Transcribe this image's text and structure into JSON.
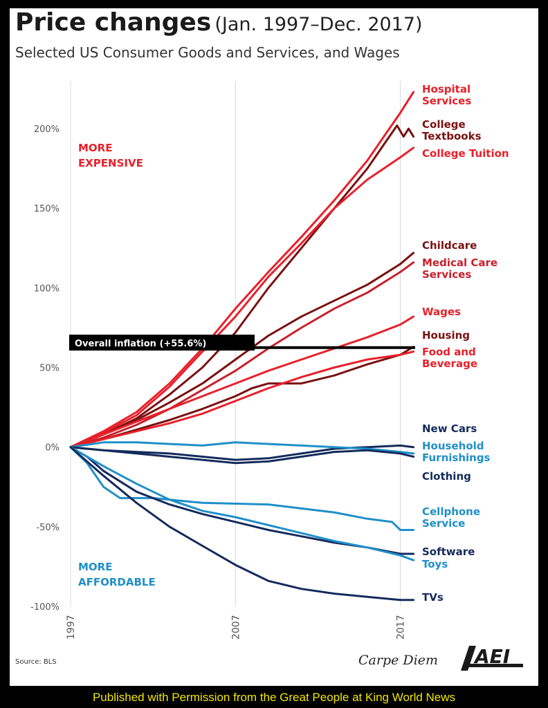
{
  "header": {
    "title": "Price changes",
    "title_range": "(Jan. 1997–Dec. 2017)",
    "subtitle": "Selected US Consumer Goods and Services, and Wages"
  },
  "footer": {
    "source": "Source: BLS",
    "brand": "Carpe Diem",
    "logo_text": "AEI",
    "permission": "Published with Permission from the Great People at King World News"
  },
  "colors": {
    "red": "#e8202a",
    "dark_red": "#7a1010",
    "navy": "#142a5c",
    "light_blue": "#1f8fc8",
    "axis_text": "#555555",
    "footer_text": "#f2e600"
  },
  "chart_data": {
    "type": "line",
    "x_ticks": [
      "1997",
      "2007",
      "2017"
    ],
    "xlim": [
      1997,
      2017.9
    ],
    "ylim": [
      -100,
      230
    ],
    "y_ticks": [
      200,
      150,
      100,
      50,
      0,
      -50,
      -100
    ],
    "y_tick_labels": [
      "200%",
      "150%",
      "100%",
      "50%",
      "0%",
      "-50%",
      "-100%"
    ],
    "region_labels": [
      {
        "text_lines": [
          "MORE",
          "EXPENSIVE"
        ],
        "color": "#e8202a"
      },
      {
        "text_lines": [
          "MORE",
          "AFFORDABLE"
        ],
        "color": "#1f8fc8"
      }
    ],
    "reference_line": {
      "label": "Overall inflation (+55.6%)",
      "value": 55.6
    },
    "series": [
      {
        "name": "Hospital Services",
        "label_lines": [
          "Hospital",
          "Services"
        ],
        "color": "#e8202a",
        "x": [
          1997,
          1999,
          2001,
          2003,
          2005,
          2007,
          2009,
          2011,
          2013,
          2015,
          2016,
          2017,
          2017.8
        ],
        "y": [
          0,
          10,
          22,
          40,
          62,
          87,
          110,
          132,
          155,
          180,
          195,
          210,
          223
        ]
      },
      {
        "name": "College Textbooks",
        "label_lines": [
          "College",
          "Textbooks"
        ],
        "color": "#7a1010",
        "x": [
          1997,
          1999,
          2001,
          2003,
          2005,
          2007,
          2009,
          2011,
          2013,
          2015,
          2016,
          2016.8,
          2017.2,
          2017.5,
          2017.8
        ],
        "y": [
          0,
          8,
          18,
          33,
          50,
          72,
          100,
          125,
          150,
          175,
          190,
          202,
          195,
          200,
          195
        ]
      },
      {
        "name": "College Tuition",
        "label_lines": [
          "College Tuition"
        ],
        "color": "#e8202a",
        "x": [
          1997,
          1999,
          2001,
          2003,
          2005,
          2007,
          2009,
          2011,
          2013,
          2015,
          2017,
          2017.8
        ],
        "y": [
          0,
          9,
          20,
          38,
          60,
          82,
          107,
          128,
          150,
          168,
          182,
          188
        ]
      },
      {
        "name": "Childcare",
        "label_lines": [
          "Childcare"
        ],
        "color": "#7a1010",
        "x": [
          1997,
          1999,
          2001,
          2003,
          2005,
          2007,
          2009,
          2011,
          2013,
          2015,
          2017,
          2017.8
        ],
        "y": [
          0,
          8,
          17,
          28,
          40,
          55,
          70,
          82,
          92,
          102,
          115,
          122
        ]
      },
      {
        "name": "Medical Care Services",
        "label_lines": [
          "Medical Care",
          "Services"
        ],
        "color": "#c8202a",
        "x": [
          1997,
          1999,
          2001,
          2003,
          2005,
          2007,
          2009,
          2011,
          2013,
          2015,
          2017,
          2017.8
        ],
        "y": [
          0,
          6,
          14,
          24,
          36,
          48,
          62,
          75,
          87,
          97,
          110,
          116
        ]
      },
      {
        "name": "Wages",
        "label_lines": [
          "Wages"
        ],
        "color": "#e8202a",
        "x": [
          1997,
          1999,
          2001,
          2003,
          2005,
          2007,
          2009,
          2011,
          2013,
          2015,
          2017,
          2017.8
        ],
        "y": [
          0,
          8,
          16,
          24,
          32,
          40,
          48,
          55,
          62,
          69,
          77,
          82
        ]
      },
      {
        "name": "Housing",
        "label_lines": [
          "Housing"
        ],
        "color": "#7a1010",
        "x": [
          1997,
          1999,
          2001,
          2003,
          2005,
          2007,
          2008,
          2009,
          2011,
          2013,
          2015,
          2017,
          2017.8
        ],
        "y": [
          0,
          5,
          11,
          17,
          24,
          32,
          37,
          40,
          40,
          45,
          52,
          58,
          63
        ]
      },
      {
        "name": "Food and Beverage",
        "label_lines": [
          "Food and",
          "Beverage"
        ],
        "color": "#e8202a",
        "x": [
          1997,
          1999,
          2001,
          2003,
          2005,
          2007,
          2009,
          2011,
          2013,
          2015,
          2017,
          2017.8
        ],
        "y": [
          0,
          5,
          10,
          15,
          21,
          29,
          37,
          44,
          50,
          55,
          58,
          60
        ]
      },
      {
        "name": "New Cars",
        "label_lines": [
          "New Cars"
        ],
        "color": "#142a5c",
        "x": [
          1997,
          1999,
          2001,
          2003,
          2005,
          2007,
          2009,
          2011,
          2013,
          2015,
          2017,
          2017.8
        ],
        "y": [
          0,
          -2,
          -3,
          -4,
          -6,
          -8,
          -7,
          -4,
          -1,
          0,
          1,
          0
        ]
      },
      {
        "name": "Household Furnishings",
        "label_lines": [
          "Household",
          "Furnishings"
        ],
        "color": "#1f8fc8",
        "x": [
          1997,
          1999,
          2001,
          2003,
          2005,
          2007,
          2009,
          2011,
          2013,
          2015,
          2017,
          2017.8
        ],
        "y": [
          0,
          3,
          3,
          2,
          1,
          3,
          2,
          1,
          0,
          -1,
          -3,
          -4
        ]
      },
      {
        "name": "Clothing",
        "label_lines": [
          "Clothing"
        ],
        "color": "#142a5c",
        "x": [
          1997,
          1999,
          2001,
          2003,
          2005,
          2007,
          2009,
          2011,
          2013,
          2015,
          2017,
          2017.8
        ],
        "y": [
          0,
          -2,
          -4,
          -6,
          -8,
          -10,
          -9,
          -6,
          -3,
          -2,
          -4,
          -6
        ]
      },
      {
        "name": "Cellphone Service",
        "label_lines": [
          "Cellphone",
          "Service"
        ],
        "color": "#1f8fc8",
        "x": [
          1997,
          1998,
          1999,
          2000,
          2002,
          2005,
          2009,
          2013,
          2015,
          2016.5,
          2017,
          2017.8
        ],
        "y": [
          0,
          -10,
          -25,
          -32,
          -32,
          -35,
          -36,
          -41,
          -45,
          -47,
          -52,
          -52
        ]
      },
      {
        "name": "Software",
        "label_lines": [
          "Software"
        ],
        "color": "#142a5c",
        "x": [
          1997,
          1998,
          1999,
          2001,
          2003,
          2005,
          2007,
          2009,
          2011,
          2013,
          2015,
          2017,
          2017.8
        ],
        "y": [
          0,
          -6,
          -15,
          -28,
          -36,
          -42,
          -47,
          -52,
          -56,
          -60,
          -63,
          -67,
          -67
        ]
      },
      {
        "name": "Toys",
        "label_lines": [
          "Toys"
        ],
        "color": "#1f8fc8",
        "x": [
          1997,
          1999,
          2001,
          2003,
          2005,
          2007,
          2009,
          2011,
          2013,
          2015,
          2017,
          2017.8
        ],
        "y": [
          0,
          -12,
          -23,
          -33,
          -40,
          -44,
          -49,
          -54,
          -59,
          -63,
          -68,
          -71
        ]
      },
      {
        "name": "TVs",
        "label_lines": [
          "TVs"
        ],
        "color": "#142a5c",
        "x": [
          1997,
          1999,
          2001,
          2003,
          2005,
          2007,
          2009,
          2011,
          2013,
          2015,
          2017,
          2017.8
        ],
        "y": [
          0,
          -18,
          -35,
          -50,
          -62,
          -74,
          -84,
          -89,
          -92,
          -94,
          -96,
          -96
        ]
      }
    ]
  }
}
